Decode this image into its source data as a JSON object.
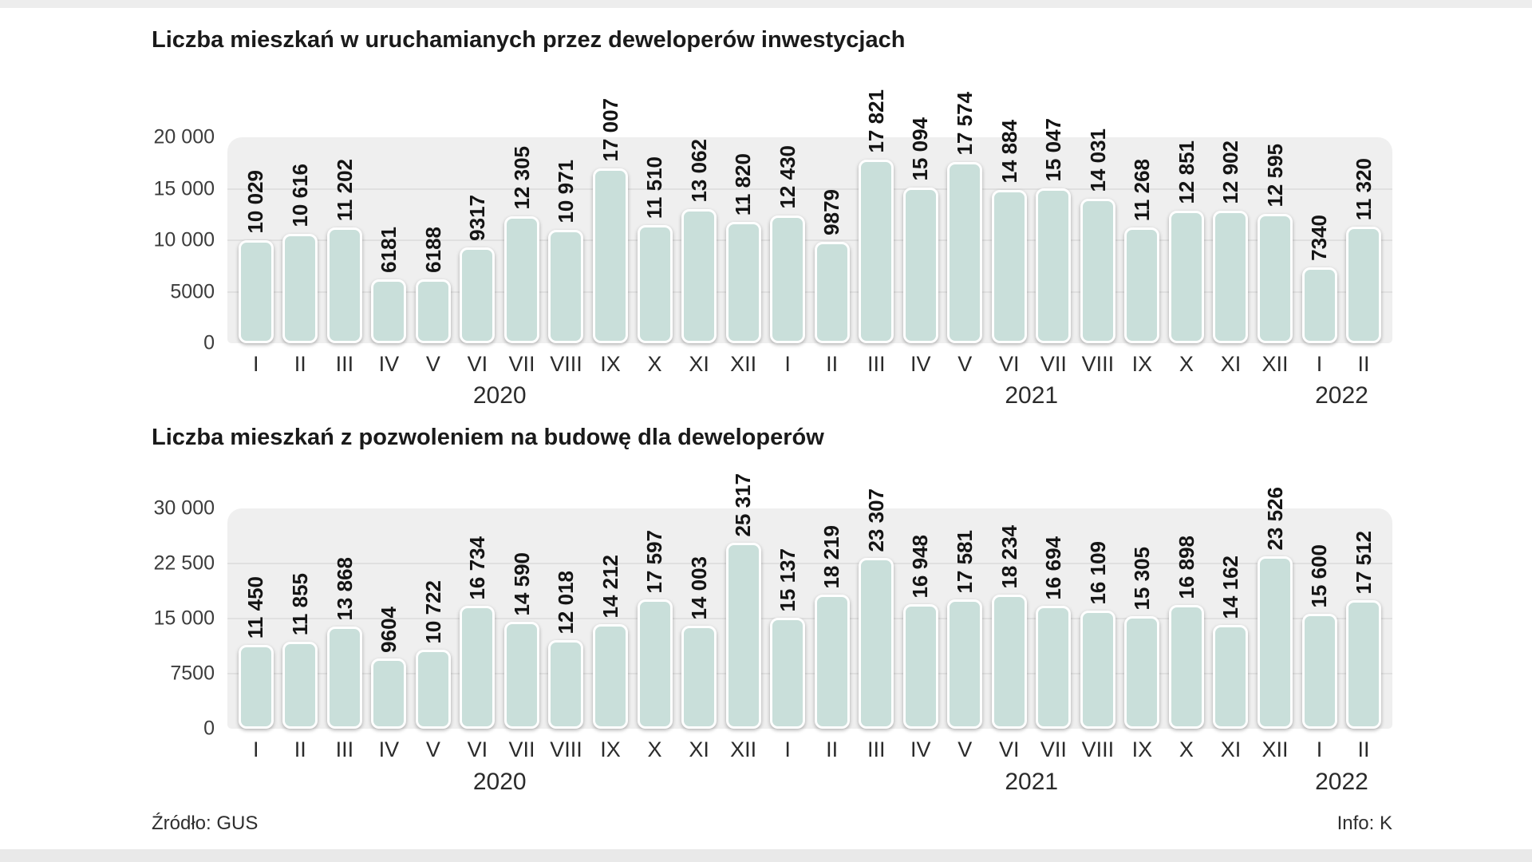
{
  "page": {
    "source_note": "Źródło: GUS",
    "info_note": "Info: K",
    "bar_color": "#c9dfda",
    "plot_background": "#efefef"
  },
  "chart_data": [
    {
      "type": "bar",
      "title": "Liczba mieszkań w uruchamianych przez deweloperów inwestycjach",
      "categories": [
        "I",
        "II",
        "III",
        "IV",
        "V",
        "VI",
        "VII",
        "VIII",
        "IX",
        "X",
        "XI",
        "XII",
        "I",
        "II",
        "III",
        "IV",
        "V",
        "VI",
        "VII",
        "VIII",
        "IX",
        "X",
        "XI",
        "XII",
        "I",
        "II"
      ],
      "values": [
        10029,
        10616,
        11202,
        6181,
        6188,
        9317,
        12305,
        10971,
        17007,
        11510,
        13062,
        11820,
        12430,
        9879,
        17821,
        15094,
        17574,
        14884,
        15047,
        14031,
        11268,
        12851,
        12902,
        12595,
        7340,
        11320
      ],
      "value_labels": [
        "10 029",
        "10 616",
        "11 202",
        "6181",
        "6188",
        "9317",
        "12 305",
        "10 971",
        "17 007",
        "11 510",
        "13 062",
        "11 820",
        "12 430",
        "9879",
        "17 821",
        "15 094",
        "17 574",
        "14 884",
        "15 047",
        "14 031",
        "11 268",
        "12 851",
        "12 902",
        "12 595",
        "7340",
        "11 320"
      ],
      "yticks": [
        {
          "value": 20000,
          "label": "20 000"
        },
        {
          "value": 15000,
          "label": "15 000"
        },
        {
          "value": 10000,
          "label": "10 000"
        },
        {
          "value": 5000,
          "label": "5000"
        },
        {
          "value": 0,
          "label": "0"
        }
      ],
      "ylim": [
        0,
        20000
      ],
      "xlabel": "",
      "ylabel": "",
      "grid": true,
      "legend": "none",
      "year_groups": [
        {
          "label": "2020",
          "count": 12
        },
        {
          "label": "2021",
          "count": 12
        },
        {
          "label": "2022",
          "count": 2
        }
      ]
    },
    {
      "type": "bar",
      "title": "Liczba mieszkań z pozwoleniem na budowę dla deweloperów",
      "categories": [
        "I",
        "II",
        "III",
        "IV",
        "V",
        "VI",
        "VII",
        "VIII",
        "IX",
        "X",
        "XI",
        "XII",
        "I",
        "II",
        "III",
        "IV",
        "V",
        "VI",
        "VII",
        "VIII",
        "IX",
        "X",
        "XI",
        "XII",
        "I",
        "II"
      ],
      "values": [
        11450,
        11855,
        13868,
        9604,
        10722,
        16734,
        14590,
        12018,
        14212,
        17597,
        14003,
        25317,
        15137,
        18219,
        23307,
        16948,
        17581,
        18234,
        16694,
        16109,
        15305,
        16898,
        14162,
        23526,
        15600,
        17512
      ],
      "value_labels": [
        "11 450",
        "11 855",
        "13 868",
        "9604",
        "10 722",
        "16 734",
        "14 590",
        "12 018",
        "14 212",
        "17 597",
        "14 003",
        "25 317",
        "15 137",
        "18 219",
        "23 307",
        "16 948",
        "17 581",
        "18 234",
        "16 694",
        "16 109",
        "15 305",
        "16 898",
        "14 162",
        "23 526",
        "15 600",
        "17 512"
      ],
      "yticks": [
        {
          "value": 30000,
          "label": "30 000"
        },
        {
          "value": 22500,
          "label": "22 500"
        },
        {
          "value": 15000,
          "label": "15 000"
        },
        {
          "value": 7500,
          "label": "7500"
        },
        {
          "value": 0,
          "label": "0"
        }
      ],
      "ylim": [
        0,
        30000
      ],
      "xlabel": "",
      "ylabel": "",
      "grid": true,
      "legend": "none",
      "year_groups": [
        {
          "label": "2020",
          "count": 12
        },
        {
          "label": "2021",
          "count": 12
        },
        {
          "label": "2022",
          "count": 2
        }
      ]
    }
  ]
}
